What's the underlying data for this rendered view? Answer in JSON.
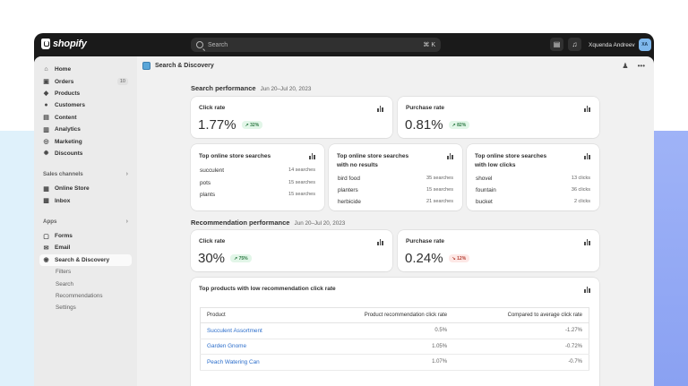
{
  "brand": {
    "name": "shopify"
  },
  "search": {
    "placeholder": "Search",
    "shortcut": "⌘ K"
  },
  "user": {
    "name": "Xquenda Andreev",
    "initials": "XA"
  },
  "sidebar": {
    "items": [
      {
        "label": "Home",
        "icon": "home-icon"
      },
      {
        "label": "Orders",
        "icon": "orders-icon",
        "count": "10"
      },
      {
        "label": "Products",
        "icon": "tag-icon"
      },
      {
        "label": "Customers",
        "icon": "person-icon"
      },
      {
        "label": "Content",
        "icon": "content-icon"
      },
      {
        "label": "Analytics",
        "icon": "chart-icon"
      },
      {
        "label": "Marketing",
        "icon": "target-icon"
      },
      {
        "label": "Discounts",
        "icon": "discount-icon"
      }
    ],
    "sales_channels": {
      "title": "Sales channels",
      "items": [
        {
          "label": "Online Store"
        },
        {
          "label": "Inbox"
        }
      ]
    },
    "apps": {
      "title": "Apps",
      "items": [
        {
          "label": "Forms"
        },
        {
          "label": "Email"
        },
        {
          "label": "Search & Discovery"
        }
      ],
      "sub_items": [
        "Filters",
        "Search",
        "Recommendations",
        "Settings"
      ]
    }
  },
  "page": {
    "title": "Search & Discovery"
  },
  "search_performance": {
    "title": "Search performance",
    "date": "Jun 20–Jul 20, 2023",
    "click_rate": {
      "label": "Click rate",
      "value": "1.77%",
      "change": "32%",
      "direction": "up"
    },
    "purchase_rate": {
      "label": "Purchase rate",
      "value": "0.81%",
      "change": "82%",
      "direction": "up"
    },
    "top_searches": {
      "title": "Top online store searches",
      "rows": [
        {
          "term": "succulent",
          "value": "14 searches"
        },
        {
          "term": "pots",
          "value": "15 searches"
        },
        {
          "term": "plants",
          "value": "15 searches"
        }
      ]
    },
    "no_results": {
      "title_line1": "Top online store searches",
      "title_line2": "with no results",
      "rows": [
        {
          "term": "bird food",
          "value": "35 searches"
        },
        {
          "term": "planters",
          "value": "15 searches"
        },
        {
          "term": "herbicide",
          "value": "21 searches"
        }
      ]
    },
    "low_clicks": {
      "title_line1": "Top online store searches",
      "title_line2": "with low clicks",
      "rows": [
        {
          "term": "shovel",
          "value": "13 clicks"
        },
        {
          "term": "fountain",
          "value": "36 clicks"
        },
        {
          "term": "bucket",
          "value": "2 clicks"
        }
      ]
    }
  },
  "recommendation_performance": {
    "title": "Recommendation performance",
    "date": "Jun 20–Jul 20, 2023",
    "click_rate": {
      "label": "Click rate",
      "value": "30%",
      "change": "75%",
      "direction": "up"
    },
    "purchase_rate": {
      "label": "Purchase rate",
      "value": "0.24%",
      "change": "12%",
      "direction": "down"
    },
    "low_ctr": {
      "title": "Top products with low recommendation click rate",
      "headers": [
        "Product",
        "Product recommendation click rate",
        "Compared to average click rate"
      ],
      "rows": [
        [
          "Succulent Assortment",
          "0.5%",
          "-1.27%"
        ],
        [
          "Garden Gnome",
          "1.05%",
          "-0.72%"
        ],
        [
          "Peach Watering Can",
          "1.07%",
          "-0.7%"
        ]
      ]
    }
  },
  "colors": {
    "accent_link": "#2c6ecb",
    "up_badge": "#2e7a45",
    "down_badge": "#b53f33",
    "topbar": "#1a1a1a"
  }
}
